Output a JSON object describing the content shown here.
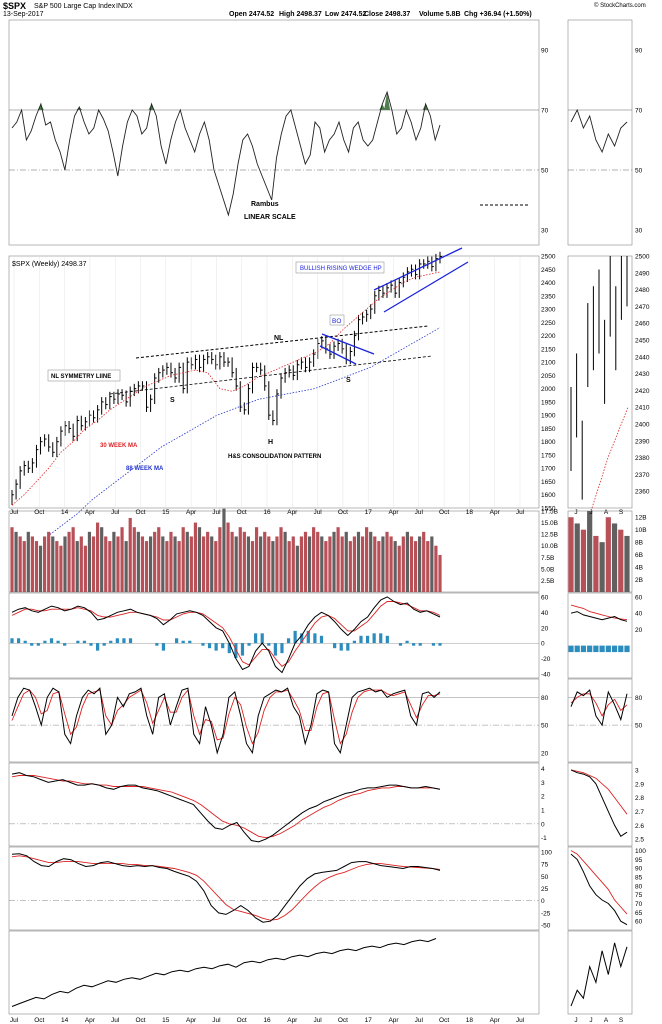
{
  "header": {
    "symbol": "$SPX",
    "name": "S&P 500 Large Cap Index",
    "exchange": "INDX",
    "date": "13-Sep-2017",
    "open_label": "Open",
    "open": "2474.52",
    "high_label": "High",
    "high": "2498.37",
    "low_label": "Low",
    "low": "2474.52",
    "close_label": "Close",
    "close": "2498.37",
    "volume_label": "Volume",
    "volume": "5.8B",
    "chg_label": "Chg",
    "chg": "+36.94 (+1.50%)",
    "brand": "© StockCharts.com"
  },
  "annotations": {
    "rambus": "Rambus",
    "linear": "LINEAR SCALE",
    "price_legend": "$SPX (Weekly) 2498.37",
    "wedge": "BULLISH RISING WEDGE HP",
    "nl": "NL",
    "bo": "BO",
    "symmetry": "NL SYMMETRY LIINE",
    "ma30": "30 WEEK MA",
    "ma88": "88 WEEK MA",
    "hs": "H&S CONSOLIDATION PATTERN",
    "s_left": "S",
    "s_right": "S",
    "head": "H"
  },
  "colors": {
    "price_bar": "#000000",
    "ma30": "#dd2222",
    "ma88": "#2233cc",
    "trend_blue": "#1a22dd",
    "rsi_fill": "#4e7d4e",
    "hist": "#2b8cbe",
    "vol_up": "#b85058",
    "vol_down": "#606060"
  },
  "chart_data": [
    {
      "type": "line",
      "panel": "rsi",
      "title": "",
      "ylim": [
        20,
        100
      ],
      "yticks": [
        30,
        50,
        70,
        90
      ],
      "weekly_values": [
        64,
        66,
        70,
        60,
        63,
        68,
        72,
        65,
        66,
        60,
        56,
        50,
        60,
        68,
        71,
        66,
        62,
        64,
        70,
        67,
        63,
        56,
        48,
        58,
        66,
        70,
        68,
        62,
        64,
        72,
        68,
        58,
        52,
        60,
        66,
        70,
        64,
        60,
        56,
        62,
        66,
        60,
        50,
        45,
        40,
        35,
        42,
        52,
        60,
        62,
        58,
        52,
        48,
        44,
        40,
        54,
        62,
        68,
        70,
        64,
        58,
        52,
        55,
        66,
        64,
        56,
        60,
        62,
        66,
        60,
        56,
        64,
        66,
        60,
        58,
        60,
        66,
        72,
        76,
        70,
        62,
        64,
        70,
        66,
        60,
        64,
        72,
        68,
        60,
        65
      ],
      "daily_values": [
        66,
        70,
        64,
        68,
        60,
        56,
        62,
        58,
        64,
        66
      ]
    },
    {
      "type": "bar",
      "panel": "price",
      "title": "$SPX (Weekly) 2498.37",
      "ylim": [
        1550,
        2500
      ],
      "yticks": [
        1550,
        1600,
        1650,
        1700,
        1750,
        1800,
        1850,
        1900,
        1950,
        2000,
        2050,
        2100,
        2150,
        2200,
        2250,
        2300,
        2350,
        2400,
        2450,
        2500
      ],
      "x_ticks": [
        "Jul",
        "Oct",
        "14",
        "Apr",
        "Jul",
        "Oct",
        "15",
        "Apr",
        "Jul",
        "Oct",
        "16",
        "Apr",
        "Jul",
        "Oct",
        "17",
        "Apr",
        "Jul",
        "Oct",
        "18",
        "Apr",
        "Jul"
      ],
      "weekly_close": [
        1600,
        1640,
        1690,
        1710,
        1700,
        1720,
        1770,
        1800,
        1810,
        1780,
        1760,
        1800,
        1840,
        1860,
        1850,
        1820,
        1880,
        1860,
        1875,
        1900,
        1890,
        1920,
        1950,
        1940,
        1970,
        1960,
        1980,
        1975,
        1950,
        1990,
        2000,
        2010,
        2010,
        1930,
        1960,
        2040,
        2060,
        2070,
        2080,
        2060,
        2040,
        2080,
        2000,
        2100,
        2090,
        2110,
        2080,
        2110,
        2120,
        2110,
        2090,
        2120,
        2100,
        2100,
        2060,
        2010,
        1930,
        1920,
        2000,
        2080,
        2080,
        2070,
        2010,
        1900,
        1880,
        1980,
        2040,
        2060,
        2070,
        2050,
        2090,
        2100,
        2080,
        2100,
        2130,
        2170,
        2180,
        2150,
        2130,
        2160,
        2170,
        2150,
        2110,
        2140,
        2200,
        2260,
        2270,
        2280,
        2300,
        2350,
        2370,
        2360,
        2380,
        2390,
        2360,
        2400,
        2420,
        2440,
        2450,
        2430,
        2470,
        2470,
        2480,
        2460,
        2490,
        2498
      ],
      "ma30": [
        1560,
        1600,
        1650,
        1700,
        1760,
        1800,
        1850,
        1880,
        1920,
        1950,
        1980,
        2010,
        2030,
        2050,
        2060,
        2070,
        2060,
        2000,
        1990,
        2010,
        2040,
        2060,
        2080,
        2100,
        2120,
        2140,
        2170,
        2220,
        2260,
        2300,
        2340,
        2370,
        2400,
        2420,
        2430,
        2440
      ],
      "ma88": [
        1450,
        1490,
        1530,
        1580,
        1620,
        1660,
        1700,
        1740,
        1780,
        1810,
        1840,
        1870,
        1900,
        1920,
        1940,
        1960,
        1970,
        1980,
        1990,
        2000,
        2020,
        2040,
        2060,
        2080,
        2110,
        2140,
        2170,
        2200,
        2230
      ],
      "daily_close": [
        2400,
        2420,
        2380,
        2450,
        2460,
        2470,
        2440,
        2480,
        2460,
        2490,
        2498
      ],
      "daily_ylim": [
        2350,
        2500
      ],
      "daily_yticks": [
        2360,
        2370,
        2380,
        2390,
        2400,
        2410,
        2420,
        2430,
        2440,
        2450,
        2460,
        2470,
        2480,
        2490,
        2500
      ]
    },
    {
      "type": "bar",
      "panel": "volume",
      "ylim": [
        0,
        17.5
      ],
      "yticks": [
        "2.5B",
        "5.0B",
        "7.5B",
        "10.0B",
        "12.5B",
        "15.0B",
        "17.5B"
      ],
      "daily_yticks": [
        "2B",
        "4B",
        "6B",
        "8B",
        "10B",
        "12B"
      ],
      "daily_ylim": [
        0,
        13
      ],
      "weekly_values": [
        14,
        13,
        12,
        11,
        13,
        12,
        11,
        10,
        12,
        13,
        12,
        11,
        10,
        12,
        13,
        14,
        11,
        12,
        10,
        13,
        12,
        15,
        14,
        12,
        11,
        13,
        12,
        14,
        11,
        16,
        14,
        13,
        12,
        11,
        12,
        13,
        14,
        12,
        11,
        13,
        12,
        11,
        14,
        13,
        12,
        15,
        14,
        12,
        13,
        12,
        11,
        14,
        18,
        15,
        13,
        12,
        14,
        13,
        12,
        11,
        14,
        12,
        13,
        12,
        11,
        12,
        14,
        13,
        11,
        12,
        10,
        12,
        13,
        12,
        14,
        13,
        12,
        11,
        12,
        13,
        14,
        12,
        13,
        11,
        12,
        13,
        12,
        14,
        13,
        12,
        11,
        12,
        13,
        12,
        11,
        10,
        12,
        13,
        12,
        11,
        12,
        13,
        11,
        12,
        10,
        8
      ],
      "daily_values": [
        12,
        11,
        10,
        13,
        9,
        8,
        12,
        11,
        10,
        9
      ]
    },
    {
      "type": "line",
      "panel": "macd",
      "ylim": [
        -45,
        65
      ],
      "yticks": [
        -40,
        -20,
        0,
        20,
        40,
        60
      ],
      "macd": [
        40,
        44,
        46,
        42,
        40,
        44,
        48,
        46,
        42,
        44,
        48,
        46,
        40,
        30,
        32,
        36,
        40,
        42,
        44,
        40,
        38,
        36,
        32,
        24,
        30,
        38,
        40,
        42,
        40,
        36,
        28,
        20,
        16,
        0,
        -20,
        -34,
        -30,
        -10,
        0,
        -10,
        -30,
        -38,
        -20,
        0,
        10,
        24,
        34,
        40,
        36,
        28,
        18,
        10,
        18,
        28,
        34,
        46,
        56,
        60,
        54,
        50,
        52,
        44,
        40,
        42,
        38,
        34
      ],
      "signal": [
        36,
        40,
        44,
        44,
        42,
        42,
        44,
        44,
        44,
        44,
        46,
        44,
        42,
        36,
        34,
        34,
        36,
        38,
        40,
        40,
        38,
        36,
        34,
        30,
        30,
        34,
        38,
        40,
        40,
        38,
        32,
        26,
        20,
        8,
        -8,
        -24,
        -28,
        -18,
        -8,
        -8,
        -20,
        -30,
        -24,
        -10,
        2,
        14,
        26,
        34,
        36,
        32,
        24,
        16,
        16,
        22,
        28,
        38,
        48,
        54,
        54,
        52,
        50,
        46,
        42,
        42,
        40,
        36
      ],
      "daily_macd": [
        40,
        42,
        38,
        36,
        34,
        32,
        34,
        36,
        32,
        30
      ],
      "daily_signal": [
        50,
        48,
        46,
        42,
        40,
        38,
        36,
        34,
        33,
        32
      ],
      "daily_yticks": [
        20,
        40,
        60
      ],
      "daily_ylim": [
        0,
        65
      ]
    },
    {
      "type": "line",
      "panel": "stochastic",
      "ylim": [
        10,
        100
      ],
      "yticks": [
        20,
        50,
        80
      ],
      "fast": [
        60,
        80,
        90,
        88,
        70,
        50,
        80,
        90,
        86,
        40,
        30,
        60,
        80,
        88,
        84,
        90,
        40,
        50,
        80,
        70,
        84,
        86,
        90,
        60,
        40,
        80,
        84,
        50,
        70,
        88,
        90,
        40,
        30,
        70,
        50,
        20,
        40,
        80,
        86,
        60,
        30,
        20,
        60,
        80,
        84,
        88,
        86,
        90,
        70,
        60,
        30,
        50,
        84,
        88,
        86,
        30,
        20,
        50,
        80,
        86,
        88,
        90,
        86,
        88,
        80,
        84,
        86,
        88,
        60,
        50,
        84,
        86,
        80,
        86
      ],
      "slow": [
        55,
        70,
        84,
        88,
        80,
        62,
        66,
        84,
        86,
        62,
        40,
        48,
        70,
        84,
        86,
        88,
        60,
        50,
        66,
        72,
        80,
        84,
        88,
        74,
        52,
        66,
        80,
        64,
        64,
        80,
        88,
        60,
        40,
        56,
        54,
        34,
        36,
        62,
        80,
        72,
        48,
        30,
        42,
        66,
        80,
        86,
        86,
        88,
        78,
        66,
        44,
        44,
        70,
        84,
        86,
        56,
        30,
        40,
        64,
        80,
        86,
        88,
        88,
        88,
        84,
        82,
        84,
        86,
        72,
        58,
        72,
        82,
        82,
        84
      ],
      "daily_fast": [
        70,
        86,
        82,
        88,
        60,
        50,
        86,
        72,
        56,
        84
      ],
      "daily_slow": [
        74,
        80,
        84,
        84,
        74,
        60,
        72,
        78,
        66,
        72
      ],
      "daily_yticks": [
        50,
        80
      ]
    },
    {
      "type": "line",
      "panel": "roc",
      "ylim": [
        -1.6,
        4.4
      ],
      "yticks": [
        -1,
        0,
        1,
        2,
        3,
        4
      ],
      "roc": [
        3.6,
        3.7,
        3.5,
        3.4,
        3.2,
        3.0,
        3.1,
        3.2,
        3.0,
        2.8,
        2.8,
        2.9,
        2.8,
        2.6,
        2.5,
        2.7,
        2.8,
        2.8,
        2.6,
        2.5,
        2.4,
        2.2,
        2.0,
        1.8,
        1.6,
        1.4,
        0.8,
        0.2,
        -0.3,
        -0.4,
        -0.1,
        0.1,
        -0.6,
        -1.2,
        -1.3,
        -1.1,
        -0.8,
        -0.4,
        0.0,
        0.4,
        0.8,
        1.1,
        1.3,
        1.6,
        1.8,
        2.0,
        2.2,
        2.3,
        2.5,
        2.6,
        2.6,
        2.7,
        2.8,
        2.8,
        2.7,
        2.6,
        2.6,
        2.7,
        2.6,
        2.5
      ],
      "ma": [
        3.4,
        3.5,
        3.5,
        3.5,
        3.4,
        3.3,
        3.2,
        3.1,
        3.1,
        3.0,
        2.9,
        2.9,
        2.8,
        2.8,
        2.7,
        2.7,
        2.7,
        2.7,
        2.7,
        2.6,
        2.5,
        2.4,
        2.3,
        2.1,
        1.9,
        1.7,
        1.4,
        1.0,
        0.6,
        0.2,
        0.0,
        -0.1,
        -0.3,
        -0.6,
        -0.9,
        -1.0,
        -0.9,
        -0.7,
        -0.4,
        -0.1,
        0.3,
        0.6,
        0.9,
        1.2,
        1.4,
        1.7,
        1.9,
        2.1,
        2.2,
        2.4,
        2.5,
        2.6,
        2.6,
        2.7,
        2.7,
        2.6,
        2.6,
        2.6,
        2.6,
        2.5
      ],
      "daily_roc": [
        3.0,
        2.98,
        2.97,
        2.95,
        2.9,
        2.8,
        2.7,
        2.6,
        2.52,
        2.55
      ],
      "daily_ma": [
        3.0,
        2.99,
        2.98,
        2.96,
        2.94,
        2.9,
        2.86,
        2.8,
        2.74,
        2.68
      ],
      "daily_yticks": [
        2.5,
        2.6,
        2.7,
        2.8,
        2.9,
        3.0
      ],
      "daily_ylim": [
        2.45,
        3.05
      ]
    },
    {
      "type": "line",
      "panel": "momentum",
      "ylim": [
        -60,
        110
      ],
      "yticks": [
        -50,
        -25,
        0,
        25,
        50,
        75,
        100
      ],
      "mom": [
        95,
        96,
        92,
        80,
        72,
        70,
        80,
        86,
        84,
        76,
        70,
        72,
        78,
        80,
        76,
        72,
        70,
        72,
        70,
        72,
        68,
        66,
        60,
        55,
        50,
        40,
        20,
        -10,
        -25,
        -28,
        -20,
        -10,
        -20,
        -35,
        -44,
        -42,
        -30,
        -10,
        10,
        30,
        45,
        55,
        58,
        60,
        62,
        70,
        78,
        80,
        80,
        76,
        72,
        70,
        68,
        66,
        70,
        70,
        68,
        66,
        62
      ],
      "ma": [
        90,
        92,
        90,
        86,
        82,
        78,
        78,
        80,
        80,
        80,
        78,
        76,
        76,
        76,
        76,
        76,
        74,
        74,
        72,
        72,
        70,
        68,
        66,
        62,
        58,
        52,
        40,
        24,
        8,
        -8,
        -18,
        -22,
        -26,
        -30,
        -36,
        -40,
        -38,
        -30,
        -18,
        -2,
        14,
        28,
        40,
        48,
        54,
        58,
        64,
        70,
        74,
        76,
        76,
        74,
        72,
        70,
        69,
        68,
        67,
        66,
        64
      ],
      "daily_mom": [
        98,
        95,
        88,
        80,
        75,
        72,
        70,
        66,
        60,
        58
      ],
      "daily_ma": [
        100,
        98,
        94,
        90,
        86,
        82,
        78,
        72,
        68,
        64
      ],
      "daily_yticks": [
        60,
        65,
        70,
        75,
        80,
        85,
        90,
        95,
        100
      ],
      "daily_ylim": [
        55,
        102
      ]
    },
    {
      "type": "line",
      "panel": "ratio",
      "weekly_values": [
        10,
        14,
        18,
        22,
        20,
        26,
        30,
        28,
        34,
        38,
        36,
        40,
        44,
        42,
        46,
        48,
        46,
        50,
        54,
        52,
        56,
        58,
        56,
        60,
        62,
        60,
        64,
        66,
        62,
        68,
        70,
        68,
        72,
        74,
        72,
        76,
        78,
        76,
        80,
        82,
        80,
        84,
        86,
        84,
        88,
        90,
        88,
        92,
        94,
        92,
        96,
        98,
        96,
        100
      ],
      "daily_values": [
        10,
        30,
        20,
        60,
        40,
        80,
        50,
        90,
        60,
        85
      ]
    }
  ]
}
